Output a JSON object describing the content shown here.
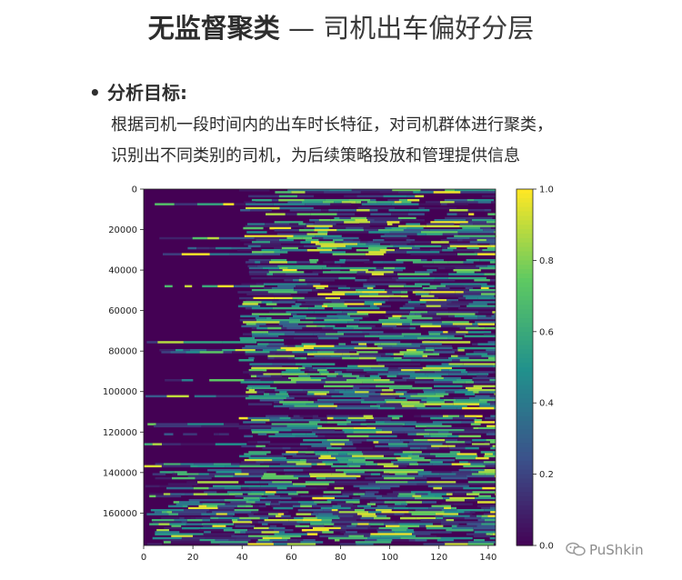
{
  "slide": {
    "title_bold": "无监督聚类",
    "title_rest": " — 司机出车偏好分层",
    "bullet_marker": "•",
    "bullet_heading": "分析目标:",
    "body_line1": "根据司机一段时间内的出车时长特征，对司机群体进行聚类，",
    "body_line2": "识别出不同类别的司机，为后续策略投放和管理提供信息"
  },
  "watermark": {
    "text": "PuShkin",
    "icon": "wechat-icon"
  },
  "chart_data": {
    "type": "heatmap",
    "colormap": "viridis",
    "colors": [
      "#440154",
      "#3b528b",
      "#21918c",
      "#5ec962",
      "#fde725"
    ],
    "x": {
      "range": [
        0,
        143
      ],
      "ticks": [
        0,
        20,
        40,
        60,
        80,
        100,
        120,
        140
      ]
    },
    "y": {
      "range": [
        0,
        176000
      ],
      "inverted": true,
      "ticks": [
        0,
        20000,
        40000,
        60000,
        80000,
        100000,
        120000,
        140000,
        160000
      ]
    },
    "colorbar": {
      "range": [
        0.0,
        1.0
      ],
      "ticks": [
        "0.0",
        "0.2",
        "0.4",
        "0.6",
        "0.8",
        "1.0"
      ]
    },
    "x_tick_labels": [
      "0",
      "20",
      "40",
      "60",
      "80",
      "100",
      "120",
      "140"
    ],
    "y_tick_labels": [
      "0",
      "20000",
      "40000",
      "60000",
      "80000",
      "100000",
      "120000",
      "140000",
      "160000"
    ],
    "pattern": {
      "dark_block_x": [
        0,
        38
      ],
      "dark_block_y": [
        0,
        135000
      ],
      "note_values": [
        0.0,
        1.0
      ]
    }
  }
}
